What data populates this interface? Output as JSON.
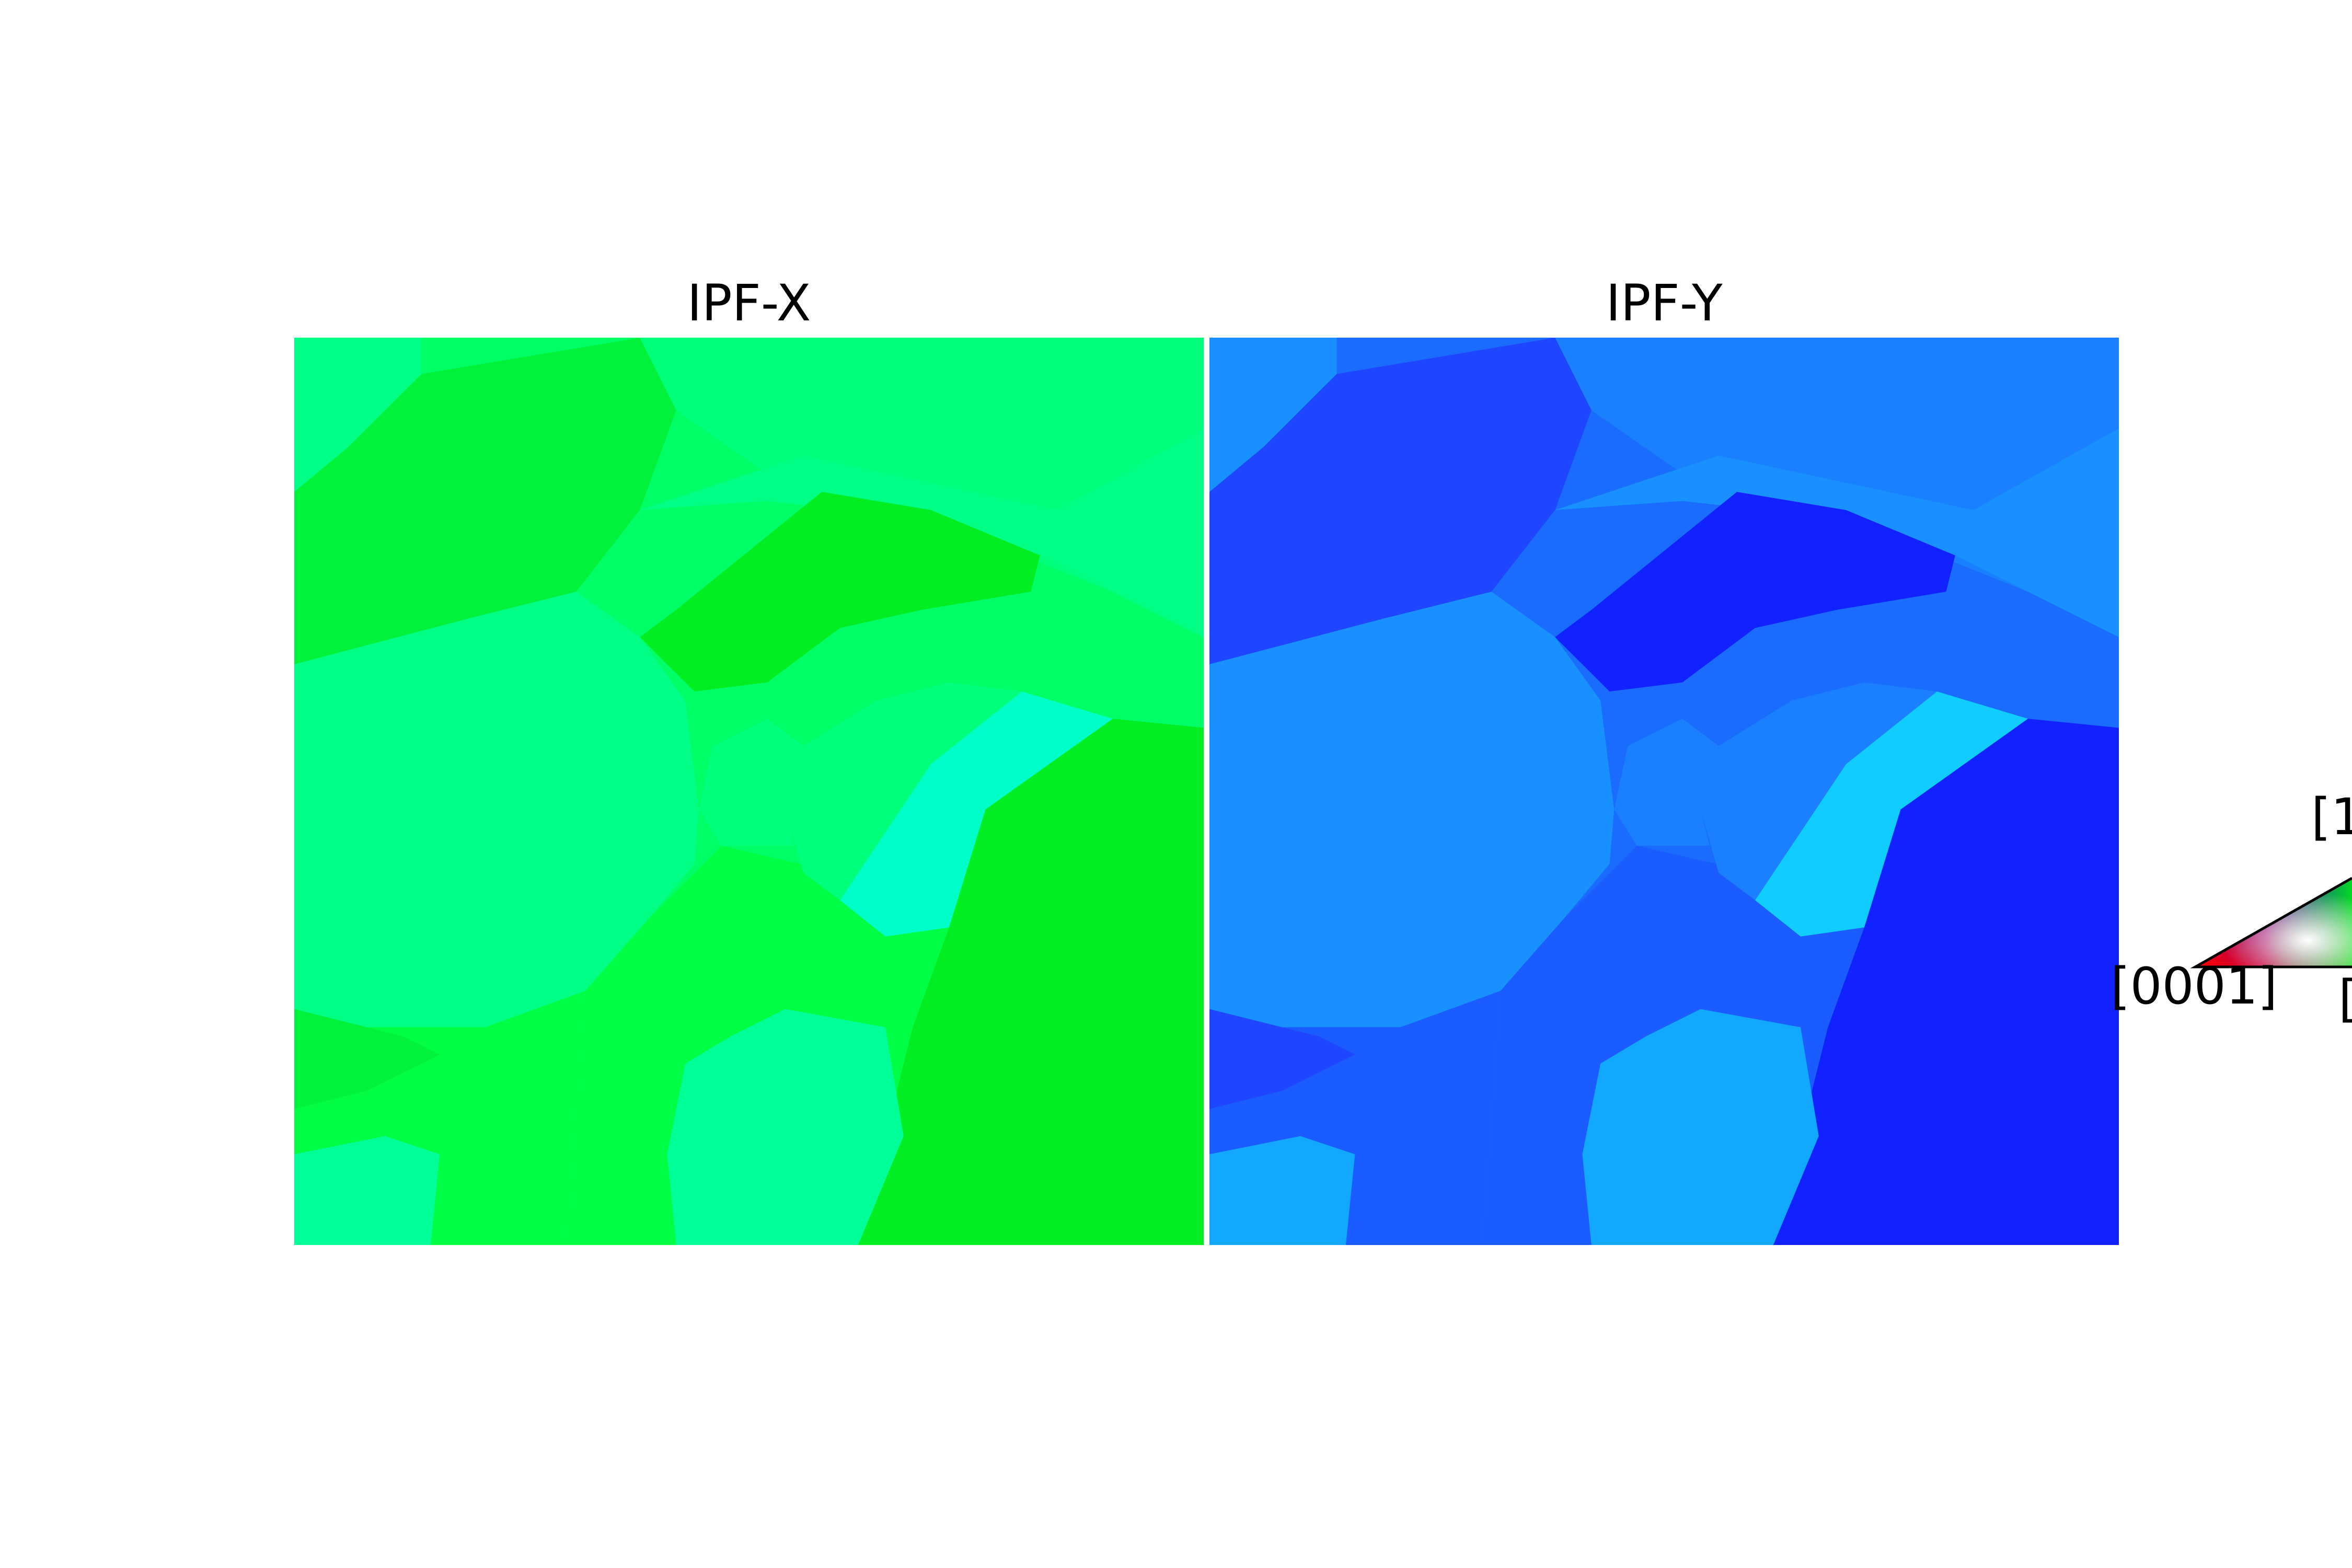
{
  "panels": [
    {
      "title": "IPF-X",
      "colors": {
        "background": "#00ff66",
        "grain_a": "#00f23a",
        "grain_b": "#00ff7a",
        "grain_c": "#00ff85",
        "grain_d": "#00ee22",
        "grain_e": "#00ffc8",
        "grain_f": "#00ff44",
        "grain_g": "#00ff96"
      }
    },
    {
      "title": "IPF-Y",
      "colors": {
        "background": "#1a6cff",
        "grain_a": "#1e46ff",
        "grain_b": "#1a80ff",
        "grain_c": "#1890ff",
        "grain_d": "#1222ff",
        "grain_e": "#10ccff",
        "grain_f": "#1a5cff",
        "grain_g": "#12a8ff"
      }
    }
  ],
  "color_key": {
    "labels": {
      "left": "[0001]",
      "top": "[1",
      "bottom": "["
    },
    "colors": {
      "corner_left": "#ff0000",
      "corner_top": "#0000ff",
      "corner_bottom": "#00ff00",
      "center": "#ffffff"
    }
  }
}
